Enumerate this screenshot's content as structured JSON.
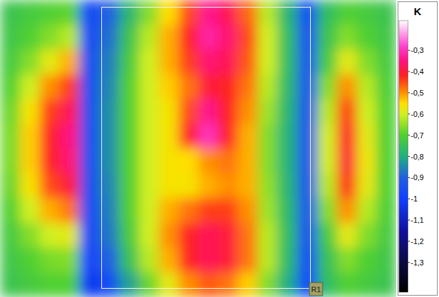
{
  "chart_data": {
    "type": "heatmap",
    "colorbar_label": "K",
    "annotations": [
      "R1"
    ],
    "tick_labels": false,
    "color_range": [
      -1.44,
      -0.16
    ],
    "color_ticks": [
      {
        "value": -0.3,
        "label": "-0,3"
      },
      {
        "value": -0.4,
        "label": "-0,4"
      },
      {
        "value": -0.5,
        "label": "-0,5"
      },
      {
        "value": -0.6,
        "label": "-0,6"
      },
      {
        "value": -0.7,
        "label": "-0,7"
      },
      {
        "value": -0.8,
        "label": "-0,8"
      },
      {
        "value": -0.9,
        "label": "-0,9"
      },
      -1,
      {
        "value": -1.1,
        "label": "-1,1"
      },
      {
        "value": -1.2,
        "label": "-1,2"
      },
      {
        "value": -1.3,
        "label": "-1,3"
      }
    ],
    "cells": [
      [
        -0.74,
        -0.72,
        -0.7,
        -0.69,
        -0.97,
        -0.9,
        -0.78,
        -0.66,
        -0.55,
        -0.45,
        -0.34,
        -0.38,
        -0.47,
        -0.62,
        -0.78,
        -0.95,
        -0.76,
        -0.7,
        -0.72,
        -0.74
      ],
      [
        -0.73,
        -0.7,
        -0.66,
        -0.62,
        -0.96,
        -0.88,
        -0.74,
        -0.62,
        -0.52,
        -0.42,
        -0.32,
        -0.36,
        -0.45,
        -0.6,
        -0.76,
        -0.94,
        -0.74,
        -0.66,
        -0.7,
        -0.73
      ],
      [
        -0.72,
        -0.66,
        -0.58,
        -0.52,
        -0.95,
        -0.86,
        -0.72,
        -0.6,
        -0.52,
        -0.44,
        -0.36,
        -0.38,
        -0.46,
        -0.6,
        -0.76,
        -0.93,
        -0.72,
        -0.58,
        -0.66,
        -0.72
      ],
      [
        -0.7,
        -0.6,
        -0.5,
        -0.44,
        -0.95,
        -0.85,
        -0.7,
        -0.6,
        -0.54,
        -0.48,
        -0.4,
        -0.42,
        -0.48,
        -0.62,
        -0.77,
        -0.93,
        -0.66,
        -0.5,
        -0.62,
        -0.71
      ],
      [
        -0.68,
        -0.56,
        -0.44,
        -0.38,
        -0.95,
        -0.84,
        -0.7,
        -0.6,
        -0.56,
        -0.45,
        -0.34,
        -0.42,
        -0.5,
        -0.64,
        -0.78,
        -0.93,
        -0.62,
        -0.44,
        -0.6,
        -0.7
      ],
      [
        -0.67,
        -0.54,
        -0.42,
        -0.35,
        -0.95,
        -0.84,
        -0.7,
        -0.6,
        -0.56,
        -0.42,
        -0.3,
        -0.42,
        -0.52,
        -0.66,
        -0.79,
        -0.93,
        -0.6,
        -0.41,
        -0.58,
        -0.7
      ],
      [
        -0.67,
        -0.54,
        -0.42,
        -0.36,
        -0.95,
        -0.84,
        -0.7,
        -0.6,
        -0.56,
        -0.55,
        -0.5,
        -0.48,
        -0.52,
        -0.66,
        -0.79,
        -0.93,
        -0.6,
        -0.4,
        -0.57,
        -0.7
      ],
      [
        -0.68,
        -0.56,
        -0.45,
        -0.4,
        -0.95,
        -0.85,
        -0.7,
        -0.6,
        -0.56,
        -0.56,
        -0.52,
        -0.5,
        -0.52,
        -0.65,
        -0.78,
        -0.93,
        -0.62,
        -0.43,
        -0.58,
        -0.7
      ],
      [
        -0.7,
        -0.6,
        -0.52,
        -0.48,
        -0.96,
        -0.86,
        -0.7,
        -0.6,
        -0.52,
        -0.48,
        -0.44,
        -0.44,
        -0.5,
        -0.64,
        -0.77,
        -0.93,
        -0.66,
        -0.5,
        -0.62,
        -0.71
      ],
      [
        -0.72,
        -0.66,
        -0.6,
        -0.58,
        -0.97,
        -0.87,
        -0.72,
        -0.6,
        -0.5,
        -0.42,
        -0.38,
        -0.4,
        -0.48,
        -0.62,
        -0.76,
        -0.94,
        -0.72,
        -0.58,
        -0.66,
        -0.72
      ],
      [
        -0.73,
        -0.7,
        -0.67,
        -0.66,
        -0.98,
        -0.9,
        -0.75,
        -0.62,
        -0.52,
        -0.42,
        -0.38,
        -0.4,
        -0.48,
        -0.62,
        -0.77,
        -0.95,
        -0.75,
        -0.66,
        -0.7,
        -0.73
      ],
      [
        -0.74,
        -0.72,
        -0.7,
        -0.7,
        -1.02,
        -0.96,
        -0.82,
        -0.68,
        -0.58,
        -0.5,
        -0.46,
        -0.48,
        -0.54,
        -0.66,
        -0.8,
        -0.98,
        -0.76,
        -0.7,
        -0.72,
        -0.74
      ]
    ]
  }
}
